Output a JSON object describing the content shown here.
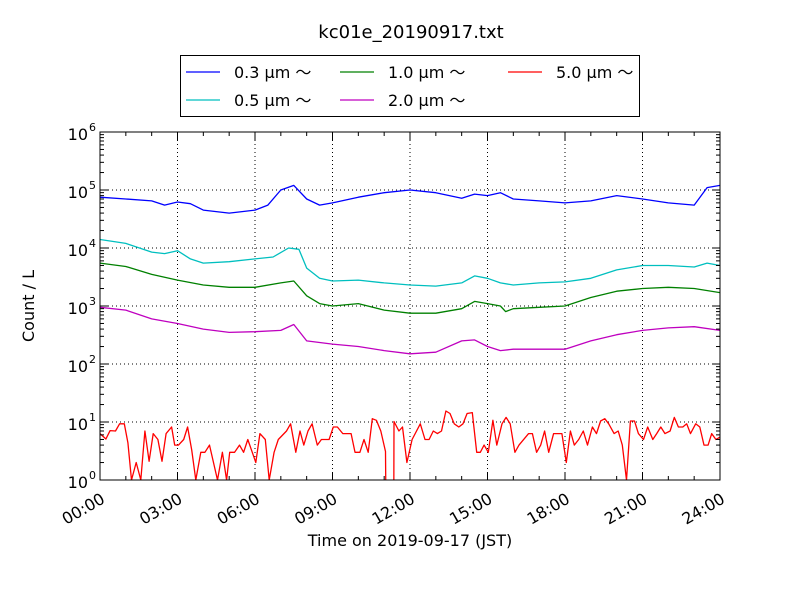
{
  "chart_data": {
    "type": "line",
    "title": "kc01e_20190917.txt",
    "xlabel": "Time on 2019-09-17 (JST)",
    "ylabel": "Count / L",
    "xlim": [
      0,
      24
    ],
    "ylim": [
      1,
      1000000
    ],
    "yscale": "log",
    "grid": true,
    "legend_placement": "top-center, above plot",
    "x_tick_labels": [
      "00:00",
      "03:00",
      "06:00",
      "09:00",
      "12:00",
      "15:00",
      "18:00",
      "21:00",
      "24:00"
    ],
    "x_ticks_hours": [
      0,
      3,
      6,
      9,
      12,
      15,
      18,
      21,
      24
    ],
    "y_ticks": [
      {
        "base": "10",
        "exp": "0",
        "value": 1
      },
      {
        "base": "10",
        "exp": "1",
        "value": 10
      },
      {
        "base": "10",
        "exp": "2",
        "value": 100
      },
      {
        "base": "10",
        "exp": "3",
        "value": 1000
      },
      {
        "base": "10",
        "exp": "4",
        "value": 10000
      },
      {
        "base": "10",
        "exp": "5",
        "value": 100000
      },
      {
        "base": "10",
        "exp": "6",
        "value": 1000000
      }
    ],
    "series": [
      {
        "name": "0.3 μm ～",
        "label": "0.3",
        "color": "#0000ff",
        "points": [
          [
            0,
            75000
          ],
          [
            1,
            70000
          ],
          [
            2,
            65000
          ],
          [
            2.5,
            55000
          ],
          [
            3,
            62000
          ],
          [
            3.5,
            58000
          ],
          [
            4,
            45000
          ],
          [
            5,
            40000
          ],
          [
            6,
            45000
          ],
          [
            6.5,
            55000
          ],
          [
            7,
            100000
          ],
          [
            7.5,
            120000
          ],
          [
            8,
            70000
          ],
          [
            8.5,
            55000
          ],
          [
            9,
            60000
          ],
          [
            10,
            75000
          ],
          [
            11,
            90000
          ],
          [
            12,
            100000
          ],
          [
            13,
            90000
          ],
          [
            14,
            72000
          ],
          [
            14.5,
            85000
          ],
          [
            15,
            80000
          ],
          [
            15.5,
            90000
          ],
          [
            16,
            70000
          ],
          [
            17,
            65000
          ],
          [
            18,
            60000
          ],
          [
            19,
            65000
          ],
          [
            20,
            80000
          ],
          [
            21,
            70000
          ],
          [
            22,
            60000
          ],
          [
            23,
            55000
          ],
          [
            23.5,
            110000
          ],
          [
            24,
            120000
          ]
        ]
      },
      {
        "name": "0.5 μm ～",
        "label": "0.5",
        "color": "#00bfbf",
        "points": [
          [
            0,
            14000
          ],
          [
            1,
            12000
          ],
          [
            2,
            8500
          ],
          [
            2.5,
            8000
          ],
          [
            3,
            9000
          ],
          [
            3.5,
            6500
          ],
          [
            4,
            5500
          ],
          [
            5,
            5800
          ],
          [
            6,
            6500
          ],
          [
            6.7,
            7000
          ],
          [
            7.3,
            10000
          ],
          [
            7.7,
            9500
          ],
          [
            8,
            4500
          ],
          [
            8.5,
            3000
          ],
          [
            9,
            2700
          ],
          [
            10,
            2800
          ],
          [
            11,
            2500
          ],
          [
            12,
            2300
          ],
          [
            13,
            2200
          ],
          [
            14,
            2500
          ],
          [
            14.5,
            3300
          ],
          [
            15,
            3000
          ],
          [
            15.5,
            2500
          ],
          [
            16,
            2300
          ],
          [
            17,
            2500
          ],
          [
            18,
            2600
          ],
          [
            19,
            3000
          ],
          [
            20,
            4200
          ],
          [
            21,
            5000
          ],
          [
            22,
            5000
          ],
          [
            23,
            4700
          ],
          [
            23.5,
            5500
          ],
          [
            24,
            5000
          ]
        ]
      },
      {
        "name": "1.0 μm ～",
        "label": "1.0",
        "color": "#008000",
        "points": [
          [
            0,
            5500
          ],
          [
            1,
            4800
          ],
          [
            2,
            3500
          ],
          [
            3,
            2800
          ],
          [
            4,
            2300
          ],
          [
            5,
            2100
          ],
          [
            6,
            2100
          ],
          [
            7,
            2500
          ],
          [
            7.5,
            2700
          ],
          [
            8,
            1500
          ],
          [
            8.5,
            1100
          ],
          [
            9,
            1000
          ],
          [
            10,
            1100
          ],
          [
            11,
            850
          ],
          [
            12,
            750
          ],
          [
            13,
            750
          ],
          [
            14,
            900
          ],
          [
            14.5,
            1200
          ],
          [
            15,
            1100
          ],
          [
            15.5,
            1000
          ],
          [
            15.7,
            800
          ],
          [
            16,
            900
          ],
          [
            17,
            950
          ],
          [
            18,
            1000
          ],
          [
            19,
            1400
          ],
          [
            20,
            1800
          ],
          [
            21,
            2000
          ],
          [
            22,
            2100
          ],
          [
            23,
            2000
          ],
          [
            24,
            1700
          ]
        ]
      },
      {
        "name": "2.0 μm ～",
        "label": "2.0",
        "color": "#bf00bf",
        "points": [
          [
            0,
            950
          ],
          [
            1,
            850
          ],
          [
            2,
            600
          ],
          [
            3,
            500
          ],
          [
            4,
            400
          ],
          [
            5,
            350
          ],
          [
            6,
            360
          ],
          [
            7,
            380
          ],
          [
            7.5,
            480
          ],
          [
            8,
            250
          ],
          [
            9,
            220
          ],
          [
            10,
            200
          ],
          [
            11,
            170
          ],
          [
            12,
            150
          ],
          [
            13,
            160
          ],
          [
            14,
            250
          ],
          [
            14.5,
            260
          ],
          [
            15,
            200
          ],
          [
            15.5,
            170
          ],
          [
            16,
            180
          ],
          [
            17,
            180
          ],
          [
            18,
            180
          ],
          [
            19,
            250
          ],
          [
            20,
            320
          ],
          [
            21,
            380
          ],
          [
            22,
            420
          ],
          [
            23,
            440
          ],
          [
            24,
            380
          ]
        ]
      },
      {
        "name": "5.0 μm ～",
        "label": "5.0",
        "color": "#ff0000",
        "points": [
          [
            0,
            6.3
          ],
          [
            0.23,
            5.1
          ],
          [
            0.39,
            7.1
          ],
          [
            0.6,
            7
          ],
          [
            0.76,
            9.3
          ],
          [
            0.94,
            9.3
          ],
          [
            1.08,
            4.4
          ],
          [
            1.22,
            1
          ],
          [
            1.4,
            2
          ],
          [
            1.58,
            1
          ],
          [
            1.74,
            7
          ],
          [
            1.9,
            2.1
          ],
          [
            2.06,
            6.3
          ],
          [
            2.24,
            5
          ],
          [
            2.4,
            2.1
          ],
          [
            2.56,
            6.3
          ],
          [
            2.77,
            8.2
          ],
          [
            2.89,
            4
          ],
          [
            3.04,
            4
          ],
          [
            3.24,
            5
          ],
          [
            3.39,
            8.2
          ],
          [
            3.55,
            3.3
          ],
          [
            3.71,
            1
          ],
          [
            3.9,
            3
          ],
          [
            4.06,
            3
          ],
          [
            4.24,
            4
          ],
          [
            4.55,
            1
          ],
          [
            4.74,
            3
          ],
          [
            4.9,
            1
          ],
          [
            5.02,
            3
          ],
          [
            5.21,
            3
          ],
          [
            5.4,
            4
          ],
          [
            5.56,
            3
          ],
          [
            5.72,
            5
          ],
          [
            6.03,
            2
          ],
          [
            6.19,
            6.3
          ],
          [
            6.4,
            5
          ],
          [
            6.55,
            1
          ],
          [
            6.74,
            3
          ],
          [
            6.9,
            5
          ],
          [
            7.22,
            7
          ],
          [
            7.38,
            9.3
          ],
          [
            7.58,
            3
          ],
          [
            7.74,
            7
          ],
          [
            7.89,
            4
          ],
          [
            8.05,
            7
          ],
          [
            8.21,
            9.3
          ],
          [
            8.41,
            4
          ],
          [
            8.57,
            5
          ],
          [
            8.87,
            5
          ],
          [
            9.03,
            8.2
          ],
          [
            9.19,
            8.2
          ],
          [
            9.4,
            6.3
          ],
          [
            9.72,
            6.3
          ],
          [
            9.87,
            3
          ],
          [
            10.06,
            3
          ],
          [
            10.22,
            5
          ],
          [
            10.38,
            3
          ],
          [
            10.54,
            11.4
          ],
          [
            10.7,
            10.7
          ],
          [
            10.87,
            7
          ],
          [
            11.05,
            3.1
          ],
          [
            11.08,
            0.1
          ],
          [
            11.37,
            0.1
          ],
          [
            11.38,
            10.2
          ],
          [
            11.57,
            7
          ],
          [
            11.71,
            8.2
          ],
          [
            11.88,
            2
          ],
          [
            12.08,
            5
          ],
          [
            12.4,
            9.3
          ],
          [
            12.58,
            5
          ],
          [
            12.74,
            5
          ],
          [
            12.9,
            7
          ],
          [
            13.06,
            6.3
          ],
          [
            13.22,
            7
          ],
          [
            13.39,
            15.5
          ],
          [
            13.55,
            14
          ],
          [
            13.71,
            9.3
          ],
          [
            13.89,
            8.2
          ],
          [
            14.05,
            9.3
          ],
          [
            14.21,
            14
          ],
          [
            14.41,
            14.5
          ],
          [
            14.58,
            3
          ],
          [
            14.72,
            3
          ],
          [
            14.87,
            4
          ],
          [
            15.03,
            3
          ],
          [
            15.21,
            10.7
          ],
          [
            15.36,
            4
          ],
          [
            15.56,
            9.3
          ],
          [
            15.72,
            12
          ],
          [
            15.88,
            9.3
          ],
          [
            16.06,
            3
          ],
          [
            16.22,
            4
          ],
          [
            16.59,
            6.3
          ],
          [
            16.74,
            6.3
          ],
          [
            16.9,
            3
          ],
          [
            17.06,
            4
          ],
          [
            17.21,
            7
          ],
          [
            17.37,
            3
          ],
          [
            17.56,
            6.3
          ],
          [
            17.88,
            6.3
          ],
          [
            18.05,
            2
          ],
          [
            18.21,
            7
          ],
          [
            18.36,
            4
          ],
          [
            18.53,
            5
          ],
          [
            18.71,
            7
          ],
          [
            18.87,
            4
          ],
          [
            19.06,
            8.2
          ],
          [
            19.22,
            6.3
          ],
          [
            19.38,
            10.4
          ],
          [
            19.54,
            11.4
          ],
          [
            19.69,
            9.3
          ],
          [
            19.9,
            6.3
          ],
          [
            20.06,
            7
          ],
          [
            20.22,
            4
          ],
          [
            20.38,
            1
          ],
          [
            20.53,
            10.4
          ],
          [
            20.69,
            10.4
          ],
          [
            20.84,
            6.3
          ],
          [
            21.04,
            5
          ],
          [
            21.2,
            8.2
          ],
          [
            21.4,
            5
          ],
          [
            21.55,
            6.3
          ],
          [
            21.71,
            8.2
          ],
          [
            21.87,
            6.3
          ],
          [
            22.07,
            7
          ],
          [
            22.23,
            12
          ],
          [
            22.39,
            8.2
          ],
          [
            22.56,
            8.2
          ],
          [
            22.71,
            9.3
          ],
          [
            22.86,
            6.3
          ],
          [
            23.06,
            9.3
          ],
          [
            23.22,
            8.2
          ],
          [
            23.38,
            4
          ],
          [
            23.54,
            4
          ],
          [
            23.68,
            6.3
          ],
          [
            23.84,
            5
          ],
          [
            24,
            5.5
          ]
        ]
      }
    ],
    "legend_unit": "μm",
    "legend_suffix": "～"
  }
}
